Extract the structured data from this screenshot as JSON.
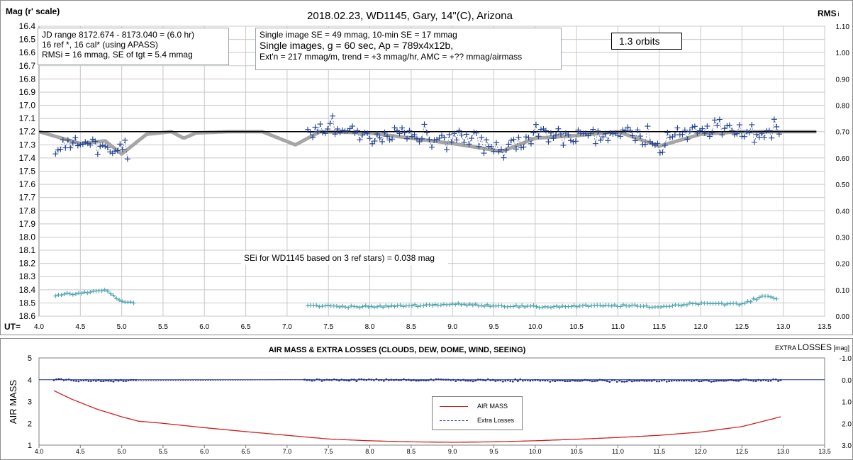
{
  "top": {
    "title": "2018.02.23,  WD1145, Gary, 14\"(C), Arizona",
    "ylabel": "Mag (r' scale)",
    "y2label": "RMS",
    "y2label_sub": "i",
    "xlabel": "UT=",
    "xticks": [
      "4.0",
      "4.5",
      "5.0",
      "5.5",
      "6.0",
      "6.5",
      "7.0",
      "7.5",
      "8.0",
      "8.5",
      "9.0",
      "9.5",
      "10.0",
      "10.5",
      "11.0",
      "11.5",
      "12.0",
      "12.5",
      "13.0",
      "13.5"
    ],
    "yticks": [
      "16.4",
      "16.5",
      "16.6",
      "16.7",
      "16.8",
      "16.9",
      "17.0",
      "17.1",
      "17.2",
      "17.3",
      "17.4",
      "17.5",
      "17.6",
      "17.7",
      "17.8",
      "17.9",
      "18.0",
      "18.1",
      "18.2",
      "18.3",
      "18.4",
      "18.5",
      "18.6"
    ],
    "y2ticks": [
      "1.10",
      "1.00",
      "0.90",
      "0.80",
      "0.70",
      "0.60",
      "0.50",
      "0.40",
      "0.30",
      "0.20",
      "0.10",
      "0.00"
    ],
    "box1": [
      "JD range  8172.674 - 8173.040  = (6.0 hr)",
      "16 ref *, 16 cal* (using APASS)",
      "RMSi = 16 mmag, SE of tgt = 5.4 mmag"
    ],
    "box2": [
      "Single image SE = 49 mmag, 10-min SE = 17 mmag",
      "Single images, g = 60 sec, Ap = 789x4x12b,",
      "Ext'n = 217 mmag/m, trend = +3 mmag/hr, AMC = +?? mmag/airmass"
    ],
    "box3": "1.3 orbits",
    "box4": "SEi for WD1145 based on 3 ref stars) = 0.038 mag"
  },
  "bottom": {
    "title": "AIR MASS & EXTRA LOSSES (CLOUDS, DEW, DOME, WIND, SEEING)",
    "ylabel": "AIR MASS",
    "y2label_a": "EXTRA ",
    "y2label_b": "LOSSES",
    "y2label_c": " [mag]",
    "xticks": [
      "4.0",
      "4.5",
      "5.0",
      "5.5",
      "6.0",
      "6.5",
      "7.0",
      "7.5",
      "8.0",
      "8.5",
      "9.0",
      "9.5",
      "10.0",
      "10.5",
      "11.0",
      "11.5",
      "12.0",
      "12.5",
      "13.0",
      "13.5"
    ],
    "yticks": [
      "5",
      "4",
      "3",
      "2",
      "1"
    ],
    "y2ticks": [
      "-1.0",
      "0.0",
      "1.0",
      "2.0",
      "3.0"
    ],
    "legend": [
      "AIR MASS",
      "Extra Losses"
    ]
  },
  "colors": {
    "mag": "#1f3f8f",
    "model": "#a6a6a6",
    "rms": "#4aa3b0",
    "ref": "#000000",
    "airmass": "#d02020",
    "losses": "#1f2f8f",
    "grid": "#c8c8c8"
  },
  "chart_data": [
    {
      "type": "scatter",
      "title": "2018.02.23,  WD1145, Gary, 14\"(C), Arizona",
      "xlabel": "UT=",
      "ylabel": "Mag (r' scale)",
      "y2label": "RMSi",
      "xlim": [
        4.0,
        13.5
      ],
      "ylim": [
        16.4,
        18.6
      ],
      "y_inverted": true,
      "y2lim": [
        0.0,
        1.1
      ],
      "grid": true,
      "series": [
        {
          "values": [
            [
              4.2,
              17.33
            ],
            [
              4.3,
              17.27
            ],
            [
              4.4,
              17.3
            ],
            [
              4.5,
              17.27
            ],
            [
              4.6,
              17.31
            ],
            [
              4.7,
              17.33
            ],
            [
              4.8,
              17.3
            ],
            [
              4.9,
              17.33
            ],
            [
              5.0,
              17.32
            ],
            [
              5.1,
              17.32
            ],
            [
              7.25,
              17.2
            ],
            [
              7.5,
              17.18
            ],
            [
              7.75,
              17.19
            ],
            [
              8.0,
              17.23
            ],
            [
              8.25,
              17.22
            ],
            [
              8.5,
              17.22
            ],
            [
              8.75,
              17.23
            ],
            [
              9.0,
              17.27
            ],
            [
              9.25,
              17.27
            ],
            [
              9.5,
              17.32
            ],
            [
              9.75,
              17.31
            ],
            [
              10.0,
              17.22
            ],
            [
              10.25,
              17.23
            ],
            [
              10.5,
              17.23
            ],
            [
              10.75,
              17.21
            ],
            [
              11.0,
              17.19
            ],
            [
              11.25,
              17.22
            ],
            [
              11.5,
              17.3
            ],
            [
              11.75,
              17.23
            ],
            [
              12.0,
              17.2
            ],
            [
              12.25,
              17.19
            ],
            [
              12.5,
              17.21
            ],
            [
              12.75,
              17.22
            ],
            [
              12.95,
              17.2
            ]
          ]
        },
        {
          "values": [
            [
              4.0,
              17.2
            ],
            [
              4.5,
              17.29
            ],
            [
              4.8,
              17.27
            ],
            [
              5.0,
              17.37
            ],
            [
              5.3,
              17.22
            ],
            [
              5.6,
              17.2
            ],
            [
              5.75,
              17.25
            ],
            [
              5.9,
              17.21
            ],
            [
              6.3,
              17.2
            ],
            [
              6.7,
              17.2
            ],
            [
              7.1,
              17.3
            ],
            [
              7.4,
              17.2
            ],
            [
              8.0,
              17.21
            ],
            [
              8.5,
              17.25
            ],
            [
              9.0,
              17.29
            ],
            [
              9.6,
              17.35
            ],
            [
              10.0,
              17.25
            ],
            [
              10.5,
              17.23
            ],
            [
              11.0,
              17.2
            ],
            [
              11.5,
              17.31
            ],
            [
              12.0,
              17.22
            ],
            [
              12.5,
              17.2
            ],
            [
              13.4,
              17.2
            ]
          ]
        },
        {
          "values": [
            [
              4.0,
              17.2
            ],
            [
              13.4,
              17.2
            ]
          ]
        },
        {
          "axis": "y2",
          "values": [
            [
              4.2,
              0.08
            ],
            [
              4.5,
              0.085
            ],
            [
              4.8,
              0.1
            ],
            [
              5.0,
              0.055
            ],
            [
              5.15,
              0.05
            ],
            [
              7.25,
              0.04
            ],
            [
              8.0,
              0.035
            ],
            [
              9.0,
              0.045
            ],
            [
              10.0,
              0.035
            ],
            [
              11.0,
              0.04
            ],
            [
              11.5,
              0.035
            ],
            [
              12.0,
              0.05
            ],
            [
              12.5,
              0.045
            ],
            [
              12.8,
              0.08
            ],
            [
              12.95,
              0.06
            ]
          ]
        }
      ]
    },
    {
      "type": "line",
      "title": "AIR MASS & EXTRA LOSSES (CLOUDS, DEW, DOME, WIND, SEEING)",
      "ylabel": "AIR MASS",
      "y2label": "EXTRA LOSSES [mag]",
      "xlim": [
        4.0,
        13.5
      ],
      "ylim": [
        1,
        5
      ],
      "y2lim": [
        -1.0,
        3.0
      ],
      "series": [
        {
          "name": "AIR MASS",
          "values": [
            [
              4.18,
              3.5
            ],
            [
              4.4,
              3.1
            ],
            [
              4.7,
              2.65
            ],
            [
              5.0,
              2.3
            ],
            [
              5.2,
              2.1
            ],
            [
              5.5,
              2.0
            ],
            [
              6.0,
              1.8
            ],
            [
              6.5,
              1.62
            ],
            [
              7.0,
              1.45
            ],
            [
              7.5,
              1.28
            ],
            [
              8.0,
              1.2
            ],
            [
              8.5,
              1.15
            ],
            [
              9.0,
              1.13
            ],
            [
              9.5,
              1.15
            ],
            [
              10.0,
              1.2
            ],
            [
              10.5,
              1.27
            ],
            [
              11.0,
              1.35
            ],
            [
              11.5,
              1.45
            ],
            [
              12.0,
              1.6
            ],
            [
              12.5,
              1.85
            ],
            [
              12.97,
              2.3
            ]
          ]
        },
        {
          "name": "Extra Losses",
          "axis": "y2",
          "values": [
            [
              4.18,
              0.0
            ],
            [
              4.7,
              0.05
            ],
            [
              5.0,
              0.05
            ],
            [
              7.0,
              0.0
            ],
            [
              9.0,
              0.02
            ],
            [
              11.0,
              0.05
            ],
            [
              12.97,
              0.02
            ]
          ]
        }
      ]
    }
  ]
}
